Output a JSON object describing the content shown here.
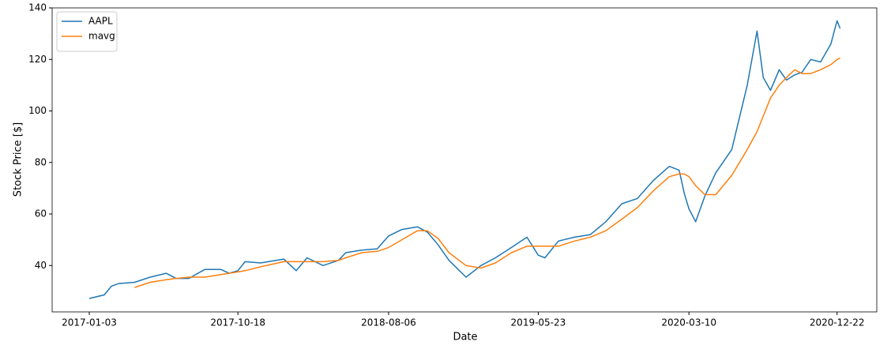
{
  "chart_data": {
    "type": "line",
    "xlabel": "Date",
    "ylabel": "Stock Price [$]",
    "x": [
      "2017-01-03",
      "2017-02-01",
      "2017-02-15",
      "2017-03-01",
      "2017-04-01",
      "2017-05-01",
      "2017-06-01",
      "2017-06-20",
      "2017-07-15",
      "2017-08-15",
      "2017-09-15",
      "2017-10-01",
      "2017-10-18",
      "2017-11-01",
      "2017-12-01",
      "2018-01-15",
      "2018-02-08",
      "2018-03-01",
      "2018-04-01",
      "2018-05-01",
      "2018-05-15",
      "2018-06-15",
      "2018-07-15",
      "2018-08-06",
      "2018-09-01",
      "2018-10-01",
      "2018-10-20",
      "2018-11-10",
      "2018-12-01",
      "2019-01-03",
      "2019-02-01",
      "2019-03-01",
      "2019-04-01",
      "2019-05-01",
      "2019-05-23",
      "2019-06-05",
      "2019-07-01",
      "2019-08-01",
      "2019-09-01",
      "2019-10-01",
      "2019-11-01",
      "2019-12-01",
      "2020-01-01",
      "2020-02-01",
      "2020-02-20",
      "2020-03-01",
      "2020-03-10",
      "2020-03-23",
      "2020-04-10",
      "2020-05-01",
      "2020-06-01",
      "2020-07-01",
      "2020-07-20",
      "2020-08-01",
      "2020-08-15",
      "2020-09-01",
      "2020-09-15",
      "2020-10-01",
      "2020-10-15",
      "2020-11-01",
      "2020-11-20",
      "2020-12-10",
      "2020-12-22",
      "2020-12-28"
    ],
    "series": [
      {
        "name": "AAPL",
        "color": "#1f77b4",
        "values": [
          27.2,
          28.6,
          32,
          33,
          33.5,
          35.5,
          37,
          35,
          35,
          38.5,
          38.5,
          37,
          38,
          41.5,
          41,
          42.5,
          38,
          43,
          40,
          42,
          45,
          46,
          46.5,
          51.5,
          54,
          55,
          53,
          48,
          42,
          35.5,
          40,
          43,
          47,
          51,
          44,
          43,
          49.5,
          51,
          52,
          57,
          64,
          66,
          73,
          78.5,
          77,
          68,
          62,
          57,
          67,
          76,
          85,
          110,
          131,
          113,
          108,
          116,
          112,
          114,
          115,
          120,
          119,
          126,
          135,
          132
        ]
      },
      {
        "name": "mavg",
        "color": "#ff7f0e",
        "values": [
          null,
          null,
          null,
          null,
          31.5,
          33.5,
          34.5,
          35,
          35.5,
          35.5,
          36.5,
          37,
          37.5,
          38,
          39.5,
          41.5,
          41.5,
          41.5,
          41.5,
          42,
          43,
          45,
          45.5,
          47,
          50,
          53.5,
          53.5,
          50.5,
          45,
          40,
          39,
          41,
          45,
          47.5,
          47.5,
          47.5,
          47.5,
          49.5,
          51,
          53.5,
          58,
          62.5,
          69,
          74.5,
          75.5,
          75.5,
          74.5,
          71,
          67.5,
          67.5,
          75,
          85,
          92,
          98,
          105,
          110,
          113,
          116,
          114.5,
          114.5,
          116,
          118,
          120,
          120.5
        ]
      }
    ],
    "xlim": [
      "2016-10-23",
      "2021-03-09"
    ],
    "xticks": [
      "2017-01-03",
      "2017-10-18",
      "2018-08-06",
      "2019-05-23",
      "2020-03-10",
      "2020-12-22"
    ],
    "ylim": [
      22,
      140
    ],
    "yticks": [
      40,
      60,
      80,
      100,
      120,
      140
    ],
    "grid": false,
    "legend": "upper left"
  }
}
